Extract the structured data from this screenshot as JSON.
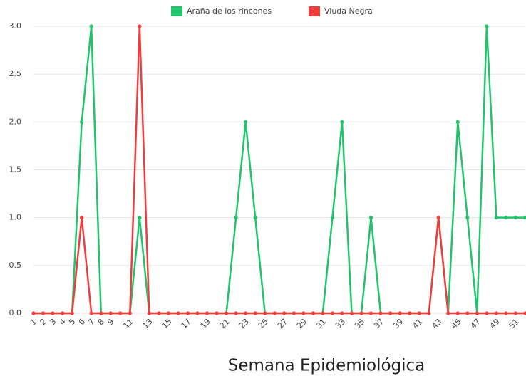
{
  "chart_data": {
    "type": "line",
    "x_label": "Semana Epidemiológica",
    "categories": [
      1,
      2,
      3,
      4,
      5,
      6,
      7,
      8,
      9,
      null,
      11,
      null,
      13,
      null,
      15,
      null,
      17,
      null,
      19,
      null,
      21,
      null,
      23,
      null,
      25,
      null,
      27,
      null,
      29,
      null,
      31,
      null,
      33,
      null,
      35,
      null,
      37,
      null,
      39,
      null,
      41,
      null,
      43,
      null,
      45,
      null,
      47,
      null,
      49,
      null,
      51,
      null
    ],
    "series": [
      {
        "name": "Araña de los rincones",
        "color": "#1fc46b",
        "values": [
          0,
          0,
          0,
          0,
          0,
          2,
          3,
          0,
          0,
          0,
          0,
          1,
          0,
          0,
          0,
          0,
          0,
          0,
          0,
          0,
          0,
          1,
          2,
          1,
          0,
          0,
          0,
          0,
          0,
          0,
          0,
          1,
          2,
          0,
          0,
          1,
          0,
          0,
          0,
          0,
          0,
          0,
          1,
          0,
          2,
          1,
          0,
          3,
          1,
          1,
          1,
          1
        ]
      },
      {
        "name": "Viuda Negra",
        "color": "#f03c3c",
        "values": [
          0,
          0,
          0,
          0,
          0,
          1,
          0,
          0,
          0,
          0,
          0,
          3,
          0,
          0,
          0,
          0,
          0,
          0,
          0,
          0,
          0,
          0,
          0,
          0,
          0,
          0,
          0,
          0,
          0,
          0,
          0,
          0,
          0,
          0,
          0,
          0,
          0,
          0,
          0,
          0,
          0,
          0,
          1,
          0,
          0,
          0,
          0,
          0,
          0,
          0,
          0,
          0
        ]
      }
    ],
    "ylim": [
      0,
      3
    ],
    "yticks": [
      {
        "value": 0,
        "label": "0.0"
      },
      0.5,
      {
        "value": 1,
        "label": "1.0"
      },
      1.5,
      {
        "value": 2,
        "label": "2.0"
      },
      2.5,
      {
        "value": 3,
        "label": "3.0"
      }
    ],
    "grid": true,
    "legend": "top"
  }
}
